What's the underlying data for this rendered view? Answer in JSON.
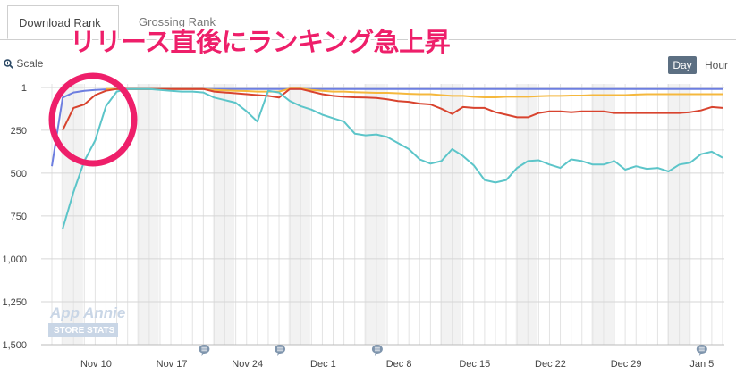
{
  "tabs": [
    {
      "label": "Download Rank"
    },
    {
      "label": "Grossing Rank"
    }
  ],
  "annotation": {
    "text": "リリース直後にランキング急上昇",
    "color": "#ee1f6a"
  },
  "controls": {
    "scale_label": "Scale",
    "day_label": "Day",
    "hour_label": "Hour"
  },
  "watermark": {
    "line1": "App Annie",
    "line2": "STORE STATS"
  },
  "chart_data": {
    "type": "line",
    "y_inverted": true,
    "ylim": [
      1,
      1500
    ],
    "yticks": [
      "1",
      "250",
      "500",
      "750",
      "1,000",
      "1,250",
      "1,500"
    ],
    "ytick_values": [
      1,
      250,
      500,
      750,
      1000,
      1250,
      1500
    ],
    "x_start": "Nov 6",
    "x_end": "Jan 7",
    "xticks": [
      "Nov 10",
      "Nov 17",
      "Nov 24",
      "Dec 1",
      "Dec 8",
      "Dec 15",
      "Dec 22",
      "Dec 29",
      "Jan 5"
    ],
    "grid": true,
    "weekend_shading": true,
    "event_markers_days": [
      14,
      21,
      30,
      60
    ],
    "series": [
      {
        "color": "#6d7ee0",
        "values": [
          460,
          60,
          30,
          20,
          15,
          12,
          10,
          10,
          10,
          10,
          10,
          10,
          10,
          10,
          10,
          10,
          10,
          10,
          10,
          10,
          10,
          10,
          10,
          10,
          10,
          10,
          10,
          10,
          10,
          10,
          10,
          10,
          10,
          10,
          10,
          10,
          10,
          10,
          10,
          10,
          10,
          10,
          10,
          10,
          10,
          10,
          10,
          10,
          10,
          10,
          10,
          10,
          10,
          10,
          10,
          10,
          10,
          10,
          10,
          10,
          10,
          10,
          10
        ]
      },
      {
        "color": "#f5b83d",
        "values": [
          null,
          null,
          null,
          null,
          null,
          10,
          10,
          10,
          10,
          10,
          10,
          10,
          10,
          10,
          10,
          15,
          18,
          20,
          22,
          25,
          25,
          25,
          8,
          8,
          15,
          20,
          25,
          25,
          28,
          30,
          32,
          32,
          35,
          38,
          40,
          40,
          45,
          50,
          50,
          55,
          58,
          58,
          55,
          55,
          55,
          52,
          50,
          50,
          48,
          48,
          45,
          45,
          45,
          45,
          42,
          40,
          40,
          40,
          40,
          40,
          40,
          40,
          40
        ]
      },
      {
        "color": "#d8432e",
        "values": [
          null,
          250,
          120,
          100,
          45,
          20,
          10,
          10,
          10,
          10,
          10,
          10,
          10,
          10,
          10,
          25,
          30,
          35,
          40,
          45,
          50,
          60,
          10,
          10,
          25,
          40,
          50,
          55,
          58,
          60,
          62,
          70,
          80,
          85,
          95,
          100,
          125,
          155,
          115,
          120,
          120,
          145,
          160,
          175,
          175,
          150,
          140,
          140,
          145,
          140,
          140,
          140,
          150,
          150,
          150,
          150,
          150,
          150,
          150,
          145,
          135,
          115,
          120
        ]
      },
      {
        "color": "#5cc5c9",
        "values": [
          null,
          825,
          610,
          430,
          310,
          110,
          25,
          10,
          10,
          10,
          15,
          20,
          25,
          25,
          30,
          60,
          75,
          90,
          140,
          200,
          20,
          30,
          80,
          110,
          130,
          160,
          180,
          200,
          270,
          280,
          275,
          290,
          325,
          360,
          420,
          445,
          430,
          360,
          400,
          455,
          540,
          555,
          540,
          470,
          430,
          425,
          450,
          470,
          420,
          430,
          450,
          450,
          430,
          480,
          460,
          475,
          470,
          490,
          450,
          440,
          390,
          375,
          410
        ]
      }
    ]
  }
}
